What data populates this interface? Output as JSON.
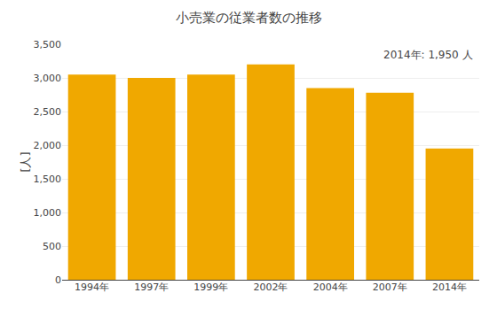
{
  "chart_data": {
    "type": "bar",
    "title": "小売業の従業者数の推移",
    "ylabel": "[人]",
    "annotation": "2014年: 1,950 人",
    "categories": [
      "1994年",
      "1997年",
      "1999年",
      "2002年",
      "2004年",
      "2007年",
      "2014年"
    ],
    "values": [
      3050,
      3000,
      3050,
      3200,
      2850,
      2780,
      1950
    ],
    "color": "#F0A800",
    "ylim": [
      0,
      3500
    ],
    "yticks": [
      0,
      500,
      {
        "value": 1000,
        "label": "1,000"
      },
      {
        "value": 1500,
        "label": "1,500"
      },
      {
        "value": 2000,
        "label": "2,000"
      },
      {
        "value": 2500,
        "label": "2,500"
      },
      {
        "value": 3000,
        "label": "3,000"
      },
      {
        "value": 3500,
        "label": "3,500"
      }
    ],
    "grid": true
  }
}
